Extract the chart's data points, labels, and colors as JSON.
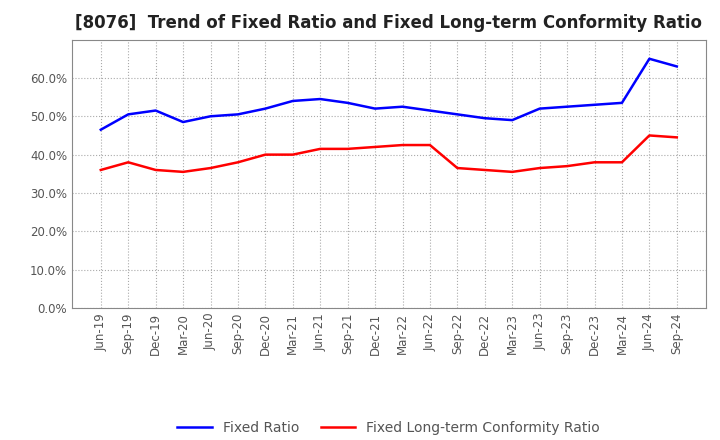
{
  "title": "[8076]  Trend of Fixed Ratio and Fixed Long-term Conformity Ratio",
  "x_labels": [
    "Jun-19",
    "Sep-19",
    "Dec-19",
    "Mar-20",
    "Jun-20",
    "Sep-20",
    "Dec-20",
    "Mar-21",
    "Jun-21",
    "Sep-21",
    "Dec-21",
    "Mar-22",
    "Jun-22",
    "Sep-22",
    "Dec-22",
    "Mar-23",
    "Jun-23",
    "Sep-23",
    "Dec-23",
    "Mar-24",
    "Jun-24",
    "Sep-24"
  ],
  "fixed_ratio": [
    46.5,
    50.5,
    51.5,
    48.5,
    50.0,
    50.5,
    52.0,
    54.0,
    54.5,
    53.5,
    52.0,
    52.5,
    51.5,
    50.5,
    49.5,
    49.0,
    52.0,
    52.5,
    53.0,
    53.5,
    65.0,
    63.0
  ],
  "fixed_lt_ratio": [
    36.0,
    38.0,
    36.0,
    35.5,
    36.5,
    38.0,
    40.0,
    40.0,
    41.5,
    41.5,
    42.0,
    42.5,
    42.5,
    36.5,
    36.0,
    35.5,
    36.5,
    37.0,
    38.0,
    38.0,
    45.0,
    44.5
  ],
  "fixed_ratio_color": "#0000FF",
  "fixed_lt_ratio_color": "#FF0000",
  "ylim": [
    0,
    70
  ],
  "yticks": [
    0,
    10,
    20,
    30,
    40,
    50,
    60
  ],
  "background_color": "#FFFFFF",
  "plot_bg_color": "#FFFFFF",
  "grid_color": "#AAAAAA",
  "legend_fixed": "Fixed Ratio",
  "legend_fixed_lt": "Fixed Long-term Conformity Ratio",
  "title_fontsize": 12,
  "axis_fontsize": 8.5,
  "legend_fontsize": 10,
  "line_width": 1.8,
  "spine_color": "#888888",
  "tick_color": "#555555"
}
